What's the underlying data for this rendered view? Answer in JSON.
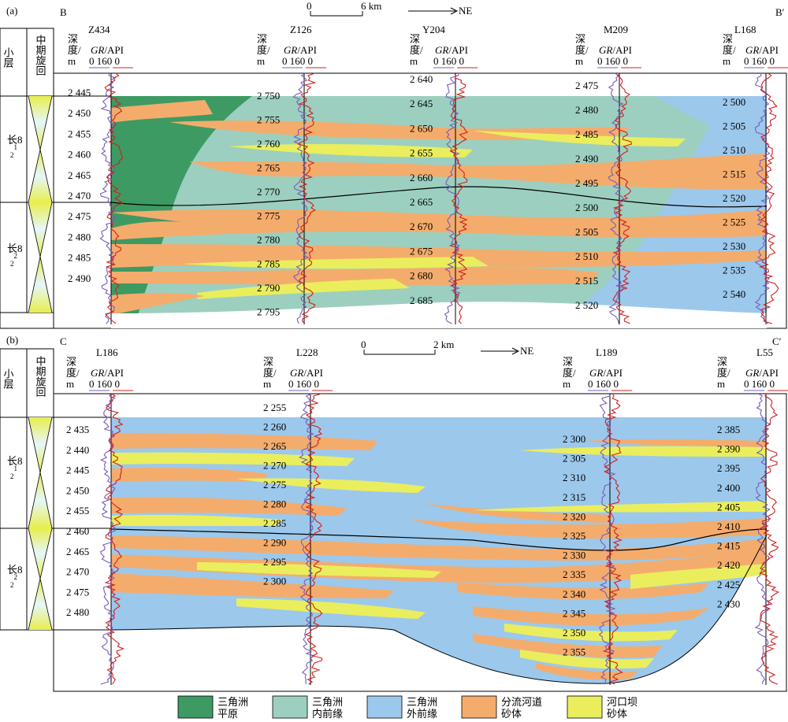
{
  "panel_a": {
    "panel_label": "(a)",
    "start_label": "B",
    "end_label": "B′",
    "scale_zero": "0",
    "scale_text": "6 km",
    "direction": "NE",
    "col_layer": "小层",
    "col_cycle": "中期旋回",
    "layer_upper": "长8",
    "layer_lower": "长8",
    "sub_upper": "2",
    "sup_upper": "1",
    "sub_lower": "2",
    "sup_lower": "2",
    "wells": [
      {
        "name": "Z434",
        "depth_header": "深度/m",
        "gr_label": "GR/API",
        "gr_scale": "0 160 0",
        "depths": [
          "2 445",
          "2 450",
          "2 455",
          "2 460",
          "2 465",
          "2 470",
          "2 475",
          "2 480",
          "2 485",
          "2 490"
        ]
      },
      {
        "name": "Z126",
        "depth_header": "深度/m",
        "gr_label": "GR/API",
        "gr_scale": "0 160 0",
        "depths": [
          "2 750",
          "2 755",
          "2 760",
          "2 765",
          "2 770",
          "2 775",
          "2 780",
          "2 785",
          "2 790",
          "2 795"
        ]
      },
      {
        "name": "Y204",
        "depth_header": "深度/m",
        "gr_label": "GR/API",
        "gr_scale": "0 160 0",
        "depths": [
          "2 640",
          "2 645",
          "2 650",
          "2 655",
          "2 660",
          "2 665",
          "2 670",
          "2 675",
          "2 680",
          "2 685"
        ]
      },
      {
        "name": "M209",
        "depth_header": "深度/m",
        "gr_label": "GR/API",
        "gr_scale": "0 160 0",
        "depths": [
          "2 475",
          "2 480",
          "2 485",
          "2 490",
          "2 495",
          "2 500",
          "2 505",
          "2 510",
          "2 515",
          "2 520"
        ]
      },
      {
        "name": "L168",
        "depth_header": "深度/m",
        "gr_label": "GR/API",
        "gr_scale": "0 160 0",
        "depths": [
          "2 500",
          "2 505",
          "2 510",
          "2 515",
          "2 520",
          "2 525",
          "2 530",
          "2 535",
          "2 540"
        ]
      }
    ]
  },
  "panel_b": {
    "panel_label": "(b)",
    "start_label": "C",
    "end_label": "C′",
    "scale_zero": "0",
    "scale_text": "2 km",
    "direction": "NE",
    "col_layer": "小层",
    "col_cycle": "中期旋回",
    "layer_upper": "长8",
    "layer_lower": "长8",
    "sub_upper": "2",
    "sup_upper": "1",
    "sub_lower": "2",
    "sup_lower": "2",
    "wells": [
      {
        "name": "L186",
        "depth_header": "深度/m",
        "gr_label": "GR/API",
        "gr_scale": "0 160 0",
        "depths": [
          "2 435",
          "2 440",
          "2 445",
          "2 450",
          "2 455",
          "2 460",
          "2 465",
          "2 470",
          "2 475",
          "2 480"
        ]
      },
      {
        "name": "L228",
        "depth_header": "深度/m",
        "gr_label": "GR/API",
        "gr_scale": "0 160 0",
        "depths": [
          "2 255",
          "2 260",
          "2 265",
          "2 270",
          "2 275",
          "2 280",
          "2 285",
          "2 290",
          "2 295",
          "2 300"
        ]
      },
      {
        "name": "L189",
        "depth_header": "深度/m",
        "gr_label": "GR/API",
        "gr_scale": "0 160 0",
        "depths": [
          "2 300",
          "2 305",
          "2 310",
          "2 315",
          "2 320",
          "2 325",
          "2 330",
          "2 335",
          "2 340",
          "2 345",
          "2 350",
          "2 355"
        ]
      },
      {
        "name": "L55",
        "depth_header": "深度/m",
        "gr_label": "GR/API",
        "gr_scale": "0 160 0",
        "depths": [
          "2 385",
          "2 390",
          "2 395",
          "2 400",
          "2 405",
          "2 410",
          "2 415",
          "2 420",
          "2 425",
          "2 430"
        ]
      }
    ]
  },
  "legend": [
    {
      "line1": "三角洲",
      "line2": "平原",
      "color": "#3d9a63"
    },
    {
      "line1": "三角洲",
      "line2": "内前缘",
      "color": "#9ccfbf"
    },
    {
      "line1": "三角洲",
      "line2": "外前缘",
      "color": "#9cc8ec"
    },
    {
      "line1": "分流河道",
      "line2": "砂体",
      "color": "#f4ac6c"
    },
    {
      "line1": "河口坝",
      "line2": "砂体",
      "color": "#eaee5c"
    }
  ]
}
